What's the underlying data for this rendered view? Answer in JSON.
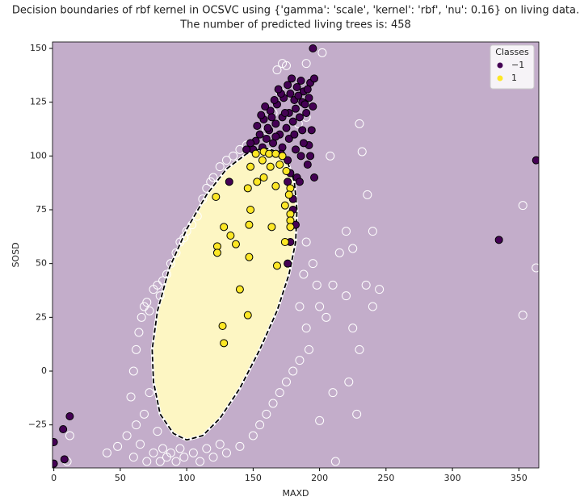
{
  "chart_data": {
    "type": "scatter",
    "title": "Decision boundaries of rbf kernel in OCSVC using {'gamma': 'scale', 'kernel': 'rbf', 'nu': 0.16} on living data.",
    "subtitle": "The number of predicted living trees is: 458",
    "x_label": "MAXD",
    "y_label": "SOSD",
    "xlim": [
      -1,
      365
    ],
    "ylim": [
      -45,
      153
    ],
    "xticks": [
      0,
      50,
      100,
      150,
      200,
      250,
      300,
      350
    ],
    "yticks": [
      {
        "value": -25,
        "label": "−25"
      },
      0,
      25,
      50,
      75,
      100,
      125,
      150
    ],
    "background_color": "#c3adca",
    "region_color": "#fdf6c3",
    "legend": {
      "title": "Classes",
      "position": "upper right"
    },
    "decision_boundary": {
      "x": [
        158,
        168,
        176,
        181,
        183,
        182,
        177,
        168,
        155,
        140,
        125,
        112,
        100,
        90,
        80,
        75,
        74,
        78,
        87,
        100,
        115,
        130,
        145
      ],
      "y": [
        104,
        102,
        97,
        88,
        75,
        60,
        45,
        28,
        10,
        -8,
        -22,
        -30,
        -32,
        -29,
        -20,
        -5,
        10,
        28,
        48,
        66,
        82,
        94,
        101
      ]
    },
    "unlabeled_points": {
      "color": "#ffffff",
      "x": [
        10,
        12,
        40,
        48,
        55,
        60,
        62,
        65,
        68,
        70,
        72,
        75,
        78,
        80,
        82,
        85,
        88,
        92,
        95,
        98,
        105,
        110,
        115,
        120,
        125,
        130,
        58,
        60,
        62,
        64,
        66,
        68,
        70,
        72,
        75,
        78,
        80,
        82,
        85,
        88,
        92,
        95,
        98,
        100,
        104,
        108,
        112,
        115,
        118,
        120,
        125,
        130,
        135,
        140,
        145,
        168,
        172,
        175,
        170,
        165,
        160,
        185,
        188,
        190,
        192,
        185,
        180,
        175,
        170,
        165,
        160,
        155,
        150,
        140,
        190,
        195,
        198,
        200,
        205,
        210,
        215,
        220,
        225,
        230,
        235,
        240,
        245,
        222,
        228,
        210,
        212,
        200,
        230,
        232,
        208,
        220,
        225,
        240,
        236,
        202,
        353,
        363,
        353,
        190,
        184,
        190
      ],
      "values": [
        -42,
        -30,
        -38,
        -35,
        -30,
        -40,
        -25,
        -34,
        -20,
        -42,
        -10,
        -38,
        -28,
        -42,
        -36,
        -40,
        -38,
        -42,
        -36,
        -40,
        -38,
        -42,
        -36,
        -40,
        -34,
        -38,
        -12,
        0,
        10,
        18,
        25,
        30,
        32,
        28,
        38,
        40,
        35,
        42,
        45,
        50,
        55,
        60,
        62,
        65,
        68,
        72,
        80,
        85,
        88,
        90,
        95,
        98,
        100,
        103,
        105,
        140,
        143,
        142,
        130,
        120,
        112,
        30,
        45,
        20,
        10,
        5,
        0,
        -5,
        -10,
        -15,
        -20,
        -25,
        -30,
        -35,
        60,
        50,
        40,
        30,
        25,
        40,
        55,
        35,
        20,
        10,
        40,
        30,
        38,
        -5,
        -20,
        -10,
        -42,
        -23,
        115,
        102,
        100,
        65,
        57,
        65,
        82,
        148,
        77,
        48,
        26,
        143,
        115,
        118
      ]
    },
    "series": [
      {
        "name": "−1",
        "color": "#440154",
        "x": [
          150,
          152,
          155,
          157,
          160,
          162,
          165,
          167,
          170,
          172,
          175,
          177,
          180,
          182,
          185,
          187,
          190,
          192,
          195,
          153,
          158,
          163,
          168,
          173,
          178,
          183,
          188,
          193,
          156,
          161,
          166,
          171,
          176,
          181,
          186,
          191,
          196,
          159,
          164,
          169,
          174,
          179,
          184,
          189,
          194,
          167,
          172,
          177,
          182,
          187,
          192,
          171,
          176,
          181,
          186,
          191,
          178,
          183,
          188,
          193,
          145,
          148,
          176,
          180,
          196,
          363,
          335,
          0,
          0,
          7,
          12,
          8,
          195,
          185,
          180,
          178,
          176,
          182,
          132
        ],
        "values": [
          103,
          107,
          110,
          104,
          108,
          112,
          106,
          115,
          110,
          118,
          113,
          120,
          116,
          122,
          118,
          125,
          120,
          127,
          123,
          114,
          117,
          121,
          124,
          127,
          129,
          132,
          130,
          134,
          119,
          113,
          126,
          129,
          133,
          126,
          135,
          131,
          136,
          123,
          118,
          131,
          120,
          136,
          128,
          124,
          112,
          109,
          104,
          108,
          103,
          112,
          105,
          101,
          98,
          110,
          100,
          96,
          92,
          90,
          106,
          100,
          103,
          106,
          88,
          80,
          90,
          98,
          61,
          -43,
          -33,
          -27,
          -21,
          -41,
          150,
          88,
          75,
          60,
          50,
          68,
          88
        ]
      },
      {
        "name": "1",
        "color": "#fde725",
        "x": [
          152,
          158,
          162,
          167,
          172,
          157,
          148,
          163,
          170,
          175,
          158,
          153,
          146,
          167,
          178,
          177,
          122,
          174,
          148,
          178,
          178,
          128,
          147,
          164,
          178,
          133,
          137,
          174,
          123,
          123,
          168,
          147,
          140,
          146,
          127,
          128
        ],
        "values": [
          101,
          102,
          101,
          101,
          100,
          98,
          95,
          95,
          96,
          93,
          90,
          88,
          85,
          86,
          85,
          82,
          81,
          77,
          75,
          73,
          70,
          67,
          68,
          67,
          67,
          63,
          59,
          60,
          58,
          55,
          49,
          53,
          38,
          26,
          21,
          13
        ]
      }
    ]
  }
}
